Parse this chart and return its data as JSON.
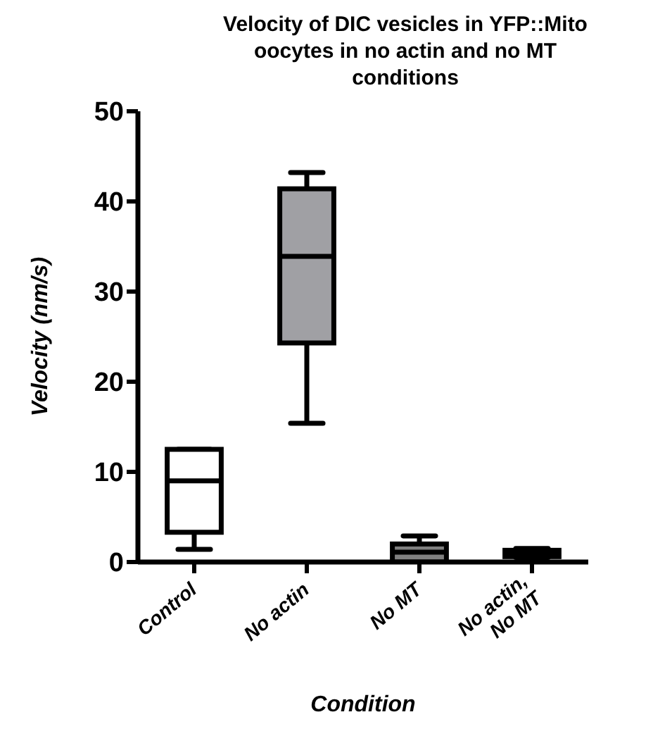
{
  "chart_data": {
    "type": "box",
    "title": "Velocity of DIC vesicles in YFP::Mito oocytes in no actin and no MT conditions",
    "xlabel": "Condition",
    "ylabel": "Velocity (nm/s)",
    "categories": [
      "Control",
      "No actin",
      "No MT",
      "No actin, No MT"
    ],
    "boxes": [
      {
        "low": 1.4,
        "q1": 3.3,
        "median": 9.0,
        "q3": 12.5,
        "high": 12.5
      },
      {
        "low": 15.4,
        "q1": 24.3,
        "median": 33.9,
        "q3": 41.4,
        "high": 43.2
      },
      {
        "low": 0,
        "q1": 0,
        "median": 1.1,
        "q3": 2.0,
        "high": 2.9
      },
      {
        "low": 0.5,
        "q1": 0.6,
        "median": 1.0,
        "q3": 1.3,
        "high": 1.5
      }
    ],
    "colors": [
      "#ffffff",
      "#a0a0a4",
      "#808080",
      "#404040"
    ],
    "ylim": [
      0,
      50
    ],
    "yticks": [
      0,
      10,
      20,
      30,
      40,
      50
    ],
    "grid": false
  }
}
